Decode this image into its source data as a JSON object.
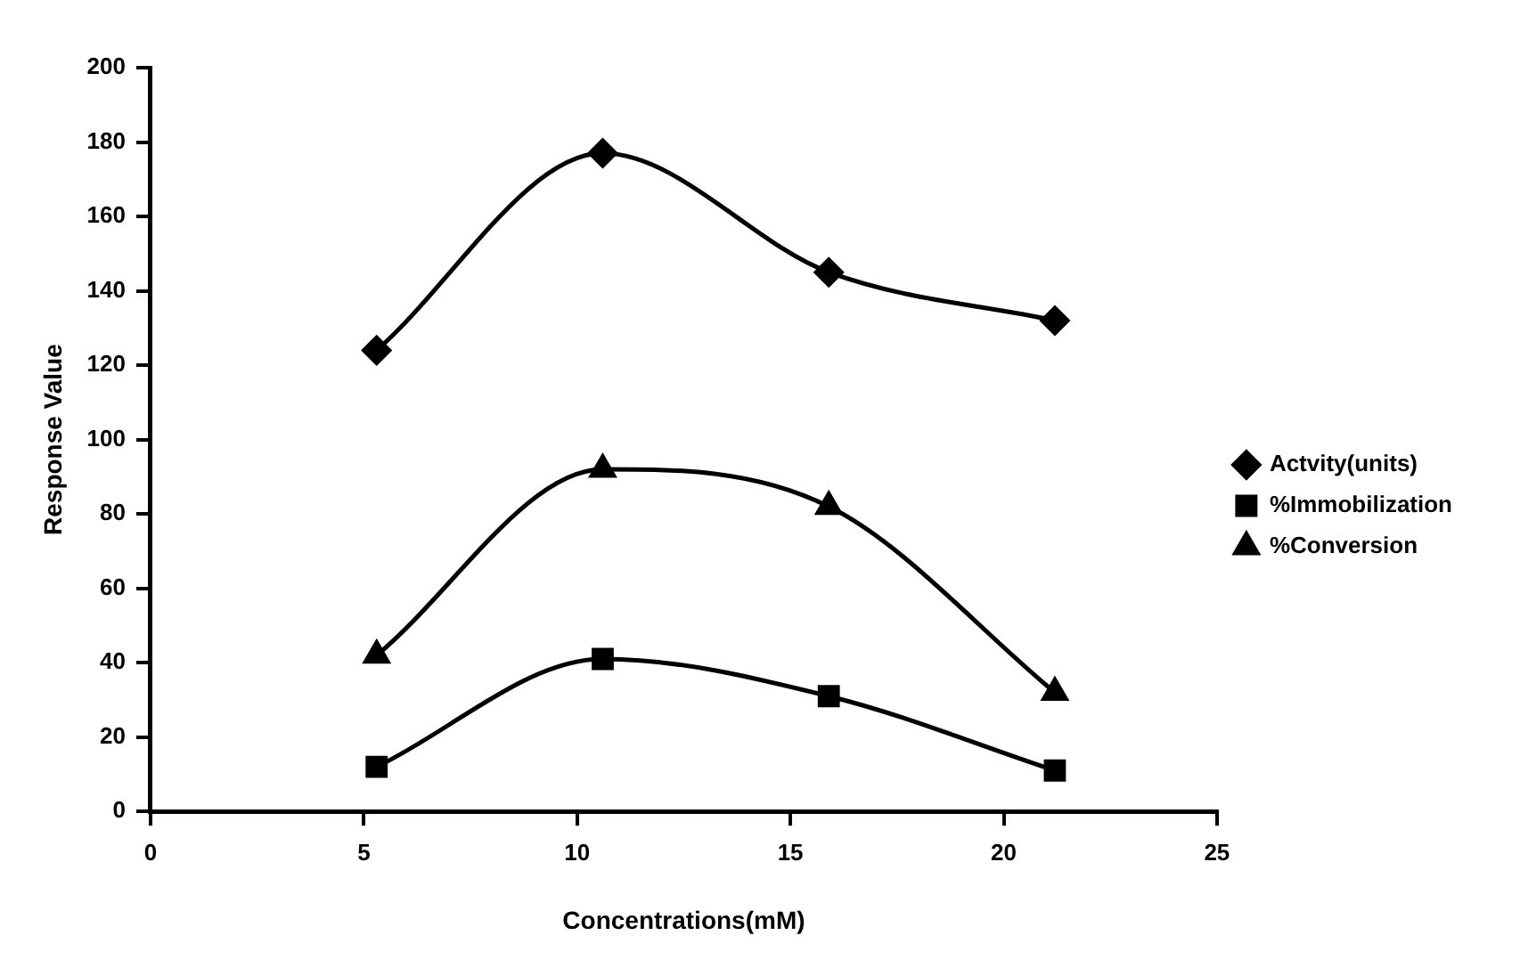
{
  "chart_data": {
    "type": "line",
    "xlabel": "Concentrations(mM)",
    "ylabel": "Response Value",
    "x": [
      5.3,
      10.6,
      15.9,
      21.2
    ],
    "series": [
      {
        "name": "Actvity(units)",
        "color": "#000000",
        "marker": "diamond",
        "values": [
          124,
          177,
          145,
          132
        ]
      },
      {
        "name": "%Immobilization",
        "color": "#000000",
        "marker": "square",
        "values": [
          12,
          41,
          31,
          11
        ]
      },
      {
        "name": "%Conversion",
        "color": "#000000",
        "marker": "triangle",
        "values": [
          42,
          92,
          82,
          32
        ]
      }
    ],
    "xlim": [
      0,
      25
    ],
    "xticks": [
      0,
      5,
      10,
      15,
      20,
      25
    ],
    "ylim": [
      0,
      200
    ],
    "yticks": [
      0,
      20,
      40,
      60,
      80,
      100,
      120,
      140,
      160,
      180,
      200
    ],
    "grid": false,
    "legend": "right",
    "line_style": "solid"
  }
}
